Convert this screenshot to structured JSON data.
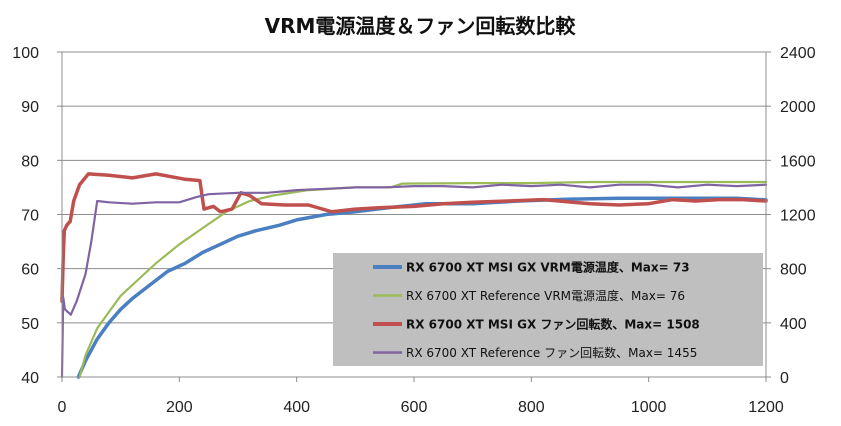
{
  "chart_data": {
    "type": "line",
    "title": "VRM電源温度＆ファン回転数比較",
    "xlim": [
      0,
      1200
    ],
    "x_ticks": [
      0,
      200,
      400,
      600,
      800,
      1000,
      1200
    ],
    "ylim_left": [
      40,
      100
    ],
    "y_ticks_left": [
      40,
      50,
      60,
      70,
      80,
      90,
      100
    ],
    "ylim_right": [
      0,
      2400
    ],
    "y_ticks_right": [
      0,
      400,
      800,
      1200,
      1600,
      2000,
      2400
    ],
    "grid": "horizontal",
    "legend_position": "bottom-right",
    "series": [
      {
        "name": "RX 6700 XT MSI GX VRM電源温度、Max= 73",
        "axis": "left",
        "color": "#4a7fc1",
        "bold": true,
        "points": [
          [
            28,
            40
          ],
          [
            40,
            43
          ],
          [
            60,
            47
          ],
          [
            80,
            50
          ],
          [
            100,
            52.5
          ],
          [
            120,
            54.5
          ],
          [
            150,
            57
          ],
          [
            180,
            59.5
          ],
          [
            210,
            61
          ],
          [
            240,
            63
          ],
          [
            270,
            64.5
          ],
          [
            300,
            66
          ],
          [
            330,
            67
          ],
          [
            370,
            68
          ],
          [
            400,
            69
          ],
          [
            450,
            70
          ],
          [
            500,
            70.5
          ],
          [
            560,
            71.3
          ],
          [
            620,
            72
          ],
          [
            700,
            72
          ],
          [
            780,
            72.5
          ],
          [
            860,
            72.8
          ],
          [
            950,
            73
          ],
          [
            1050,
            73
          ],
          [
            1150,
            73
          ],
          [
            1200,
            72.7
          ]
        ]
      },
      {
        "name": "RX 6700 XT Reference VRM電源温度、Max= 76",
        "axis": "left",
        "color": "#9bbb59",
        "bold": false,
        "points": [
          [
            30,
            40
          ],
          [
            40,
            44
          ],
          [
            60,
            49
          ],
          [
            80,
            52
          ],
          [
            100,
            55
          ],
          [
            130,
            58
          ],
          [
            160,
            61
          ],
          [
            200,
            64.5
          ],
          [
            240,
            67.5
          ],
          [
            280,
            70.5
          ],
          [
            320,
            72.5
          ],
          [
            360,
            73.5
          ],
          [
            420,
            74.5
          ],
          [
            500,
            75
          ],
          [
            560,
            75
          ],
          [
            580,
            75.7
          ],
          [
            700,
            75.8
          ],
          [
            800,
            75.8
          ],
          [
            900,
            76
          ],
          [
            1000,
            76
          ],
          [
            1100,
            76
          ],
          [
            1200,
            76
          ]
        ]
      },
      {
        "name": "RX 6700 XT MSI GX ファン回転数、Max= 1508",
        "axis": "right",
        "color": "#c0504d",
        "bold": true,
        "points": [
          [
            0,
            560
          ],
          [
            2,
            880
          ],
          [
            4,
            1080
          ],
          [
            8,
            1120
          ],
          [
            14,
            1150
          ],
          [
            20,
            1300
          ],
          [
            30,
            1420
          ],
          [
            45,
            1500
          ],
          [
            80,
            1490
          ],
          [
            120,
            1470
          ],
          [
            160,
            1500
          ],
          [
            210,
            1460
          ],
          [
            235,
            1450
          ],
          [
            242,
            1240
          ],
          [
            258,
            1260
          ],
          [
            270,
            1220
          ],
          [
            290,
            1240
          ],
          [
            305,
            1360
          ],
          [
            320,
            1340
          ],
          [
            340,
            1280
          ],
          [
            380,
            1270
          ],
          [
            420,
            1270
          ],
          [
            460,
            1220
          ],
          [
            500,
            1240
          ],
          [
            540,
            1250
          ],
          [
            600,
            1260
          ],
          [
            650,
            1280
          ],
          [
            700,
            1290
          ],
          [
            760,
            1300
          ],
          [
            820,
            1310
          ],
          [
            900,
            1280
          ],
          [
            950,
            1270
          ],
          [
            1000,
            1280
          ],
          [
            1040,
            1310
          ],
          [
            1080,
            1300
          ],
          [
            1120,
            1310
          ],
          [
            1160,
            1310
          ],
          [
            1200,
            1300
          ]
        ]
      },
      {
        "name": "RX 6700 XT Reference ファン回転数、Max= 1455",
        "axis": "right",
        "color": "#8064a2",
        "bold": false,
        "points": [
          [
            0,
            0
          ],
          [
            2,
            590
          ],
          [
            5,
            500
          ],
          [
            15,
            460
          ],
          [
            25,
            560
          ],
          [
            40,
            760
          ],
          [
            50,
            1000
          ],
          [
            60,
            1300
          ],
          [
            80,
            1290
          ],
          [
            120,
            1280
          ],
          [
            160,
            1290
          ],
          [
            200,
            1290
          ],
          [
            230,
            1330
          ],
          [
            250,
            1350
          ],
          [
            300,
            1360
          ],
          [
            350,
            1360
          ],
          [
            400,
            1380
          ],
          [
            450,
            1390
          ],
          [
            500,
            1400
          ],
          [
            550,
            1400
          ],
          [
            600,
            1410
          ],
          [
            650,
            1410
          ],
          [
            700,
            1400
          ],
          [
            750,
            1420
          ],
          [
            800,
            1410
          ],
          [
            850,
            1420
          ],
          [
            900,
            1400
          ],
          [
            950,
            1420
          ],
          [
            1000,
            1420
          ],
          [
            1050,
            1400
          ],
          [
            1100,
            1420
          ],
          [
            1150,
            1410
          ],
          [
            1200,
            1420
          ]
        ]
      }
    ]
  }
}
